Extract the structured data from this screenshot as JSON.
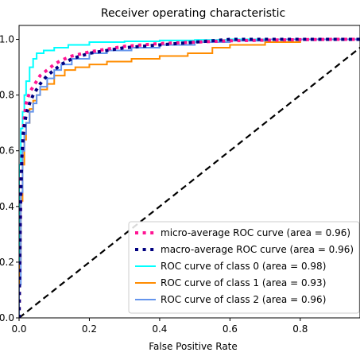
{
  "chart_data": {
    "type": "line",
    "title": "Receiver operating characteristic",
    "xlabel": "False Positive Rate",
    "ylabel": "",
    "xlim": [
      0.0,
      0.97
    ],
    "ylim": [
      0.0,
      1.05
    ],
    "x_ticks": [
      0.0,
      0.2,
      0.4,
      0.6,
      0.8
    ],
    "x_tick_labels": [
      "0.0",
      "0.2",
      "0.4",
      "0.6",
      "0.8"
    ],
    "y_ticks": [
      0.0,
      0.2,
      0.4,
      0.6,
      0.8,
      1.0
    ],
    "y_tick_labels": [
      "0.0",
      "0.2",
      "0.4",
      "0.6",
      "0.8",
      "1.0"
    ],
    "grid": false,
    "legend_position": "lower-right",
    "series": [
      {
        "name": "micro-average ROC curve (area = 0.96)",
        "color": "#ff1493",
        "style": "dotted",
        "x": [
          0.0,
          0.003,
          0.006,
          0.01,
          0.015,
          0.02,
          0.03,
          0.04,
          0.05,
          0.06,
          0.08,
          0.1,
          0.12,
          0.15,
          0.2,
          0.25,
          0.3,
          0.4,
          0.5,
          0.6,
          0.7,
          0.8,
          0.9,
          1.0
        ],
        "y": [
          0.0,
          0.3,
          0.5,
          0.63,
          0.72,
          0.77,
          0.81,
          0.83,
          0.85,
          0.87,
          0.89,
          0.91,
          0.925,
          0.94,
          0.955,
          0.965,
          0.975,
          0.985,
          0.99,
          0.995,
          0.997,
          0.999,
          1.0,
          1.0
        ]
      },
      {
        "name": "macro-average ROC curve (area = 0.96)",
        "color": "#000080",
        "style": "dotted",
        "x": [
          0.0,
          0.004,
          0.008,
          0.012,
          0.02,
          0.03,
          0.04,
          0.05,
          0.06,
          0.08,
          0.1,
          0.12,
          0.15,
          0.2,
          0.25,
          0.3,
          0.4,
          0.5,
          0.6,
          0.7,
          0.8,
          0.9,
          1.0
        ],
        "y": [
          0.0,
          0.4,
          0.58,
          0.66,
          0.73,
          0.77,
          0.8,
          0.82,
          0.84,
          0.87,
          0.89,
          0.91,
          0.93,
          0.95,
          0.96,
          0.97,
          0.98,
          0.99,
          1.0,
          1.0,
          1.0,
          1.0,
          1.0
        ]
      },
      {
        "name": "ROC curve of class 0 (area = 0.98)",
        "color": "#00ffff",
        "style": "solid",
        "x": [
          0.0,
          0.0,
          0.005,
          0.005,
          0.01,
          0.01,
          0.015,
          0.015,
          0.02,
          0.02,
          0.03,
          0.03,
          0.04,
          0.04,
          0.05,
          0.05,
          0.07,
          0.07,
          0.1,
          0.1,
          0.14,
          0.14,
          0.2,
          0.2,
          0.3,
          0.3,
          0.4,
          0.4,
          0.5,
          0.5,
          0.6,
          0.6,
          1.0
        ],
        "y": [
          0.0,
          0.55,
          0.55,
          0.68,
          0.68,
          0.74,
          0.74,
          0.8,
          0.8,
          0.85,
          0.85,
          0.9,
          0.9,
          0.93,
          0.93,
          0.95,
          0.95,
          0.96,
          0.96,
          0.97,
          0.97,
          0.98,
          0.98,
          0.99,
          0.99,
          0.993,
          0.993,
          0.996,
          0.996,
          0.998,
          0.998,
          1.0,
          1.0
        ]
      },
      {
        "name": "ROC curve of class 1 (area = 0.93)",
        "color": "#ff8c00",
        "style": "solid",
        "x": [
          0.0,
          0.0,
          0.005,
          0.005,
          0.01,
          0.01,
          0.015,
          0.015,
          0.02,
          0.02,
          0.03,
          0.03,
          0.04,
          0.04,
          0.05,
          0.05,
          0.06,
          0.06,
          0.08,
          0.08,
          0.1,
          0.1,
          0.13,
          0.13,
          0.16,
          0.16,
          0.2,
          0.2,
          0.25,
          0.25,
          0.32,
          0.32,
          0.4,
          0.4,
          0.48,
          0.48,
          0.55,
          0.55,
          0.6,
          0.6,
          0.7,
          0.7,
          0.8,
          0.8,
          1.0
        ],
        "y": [
          0.0,
          0.2,
          0.2,
          0.42,
          0.42,
          0.55,
          0.55,
          0.64,
          0.64,
          0.7,
          0.7,
          0.75,
          0.75,
          0.78,
          0.78,
          0.8,
          0.8,
          0.82,
          0.82,
          0.84,
          0.84,
          0.87,
          0.87,
          0.89,
          0.89,
          0.9,
          0.9,
          0.91,
          0.91,
          0.92,
          0.92,
          0.93,
          0.93,
          0.94,
          0.94,
          0.95,
          0.95,
          0.97,
          0.97,
          0.98,
          0.98,
          0.99,
          0.99,
          1.0,
          1.0
        ]
      },
      {
        "name": "ROC curve of class 2 (area = 0.96)",
        "color": "#6495ed",
        "style": "solid",
        "x": [
          0.0,
          0.0,
          0.005,
          0.005,
          0.01,
          0.01,
          0.015,
          0.015,
          0.02,
          0.02,
          0.03,
          0.03,
          0.04,
          0.04,
          0.05,
          0.05,
          0.06,
          0.06,
          0.08,
          0.08,
          0.1,
          0.1,
          0.12,
          0.12,
          0.15,
          0.15,
          0.2,
          0.2,
          0.25,
          0.25,
          0.32,
          0.32,
          0.4,
          0.4,
          0.5,
          0.5,
          0.6,
          0.6,
          0.7,
          0.7,
          1.0
        ],
        "y": [
          0.0,
          0.12,
          0.12,
          0.45,
          0.45,
          0.6,
          0.6,
          0.66,
          0.66,
          0.7,
          0.7,
          0.74,
          0.74,
          0.77,
          0.77,
          0.8,
          0.8,
          0.83,
          0.83,
          0.86,
          0.86,
          0.89,
          0.89,
          0.91,
          0.91,
          0.93,
          0.93,
          0.95,
          0.95,
          0.96,
          0.96,
          0.97,
          0.97,
          0.98,
          0.98,
          0.99,
          0.99,
          0.995,
          0.995,
          1.0,
          1.0
        ]
      }
    ],
    "reference_line": {
      "color": "#000000",
      "style": "dashed",
      "x": [
        0.0,
        1.0
      ],
      "y": [
        0.0,
        1.0
      ]
    }
  }
}
